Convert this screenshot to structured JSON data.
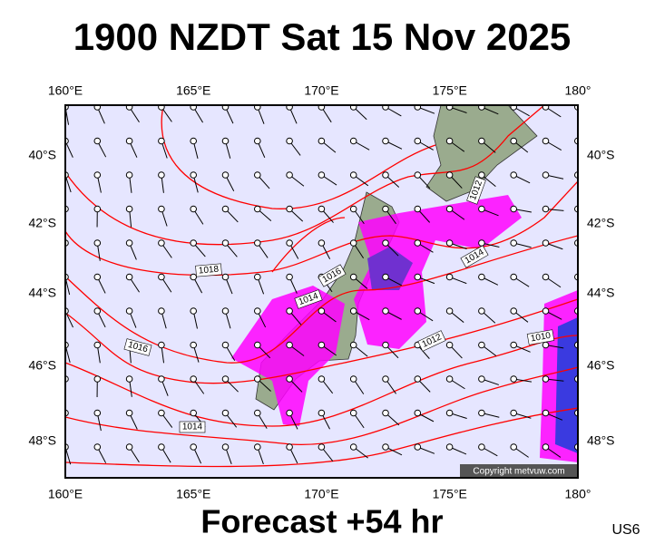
{
  "header": {
    "title": "1900 NZDT Sat 15 Nov 2025"
  },
  "map": {
    "lon_labels": [
      "160°E",
      "165°E",
      "170°E",
      "175°E",
      "180°"
    ],
    "lat_labels": [
      "40°S",
      "42°S",
      "44°S",
      "46°S",
      "48°S"
    ],
    "isobar_labels": [
      "1018",
      "1016",
      "1016",
      "1014",
      "1014",
      "1014",
      "1012",
      "1012",
      "1010"
    ],
    "copyright": "Copyright metvuw.com"
  },
  "footer": {
    "forecast": "Forecast +54 hr",
    "code": "US6"
  }
}
